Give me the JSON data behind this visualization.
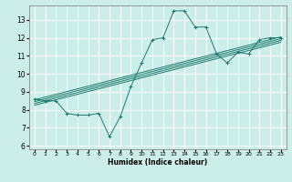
{
  "title": "",
  "xlabel": "Humidex (Indice chaleur)",
  "bg_color": "#cceee8",
  "grid_color": "#ffffff",
  "line_color": "#1a7a6e",
  "xlim": [
    -0.5,
    23.5
  ],
  "ylim": [
    5.8,
    13.8
  ],
  "xticks": [
    0,
    1,
    2,
    3,
    4,
    5,
    6,
    7,
    8,
    9,
    10,
    11,
    12,
    13,
    14,
    15,
    16,
    17,
    18,
    19,
    20,
    21,
    22,
    23
  ],
  "yticks": [
    6,
    7,
    8,
    9,
    10,
    11,
    12,
    13
  ],
  "main_line": {
    "x": [
      0,
      1,
      2,
      3,
      4,
      5,
      6,
      7,
      8,
      9,
      10,
      11,
      12,
      13,
      14,
      15,
      16,
      17,
      18,
      19,
      20,
      21,
      22,
      23
    ],
    "y": [
      8.6,
      8.5,
      8.5,
      7.8,
      7.7,
      7.7,
      7.8,
      6.5,
      7.6,
      9.3,
      10.6,
      11.9,
      12.0,
      13.5,
      13.5,
      12.6,
      12.6,
      11.1,
      10.6,
      11.2,
      11.1,
      11.9,
      12.0,
      12.0
    ]
  },
  "diag_lines": [
    {
      "x": [
        0,
        23
      ],
      "y": [
        8.55,
        12.05
      ]
    },
    {
      "x": [
        0,
        23
      ],
      "y": [
        8.45,
        11.95
      ]
    },
    {
      "x": [
        0,
        23
      ],
      "y": [
        8.35,
        11.85
      ]
    },
    {
      "x": [
        0,
        23
      ],
      "y": [
        8.25,
        11.75
      ]
    }
  ]
}
